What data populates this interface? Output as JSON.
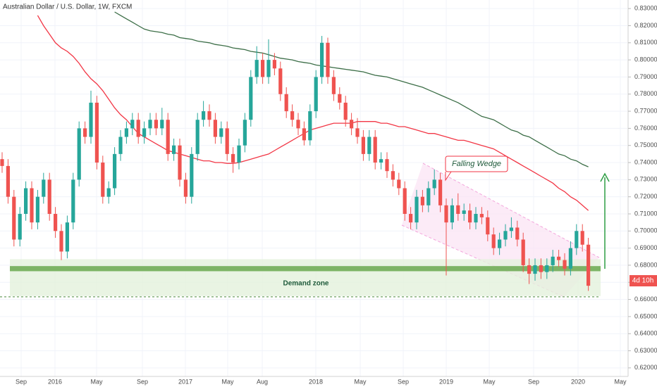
{
  "chart_data": {
    "type": "candlestick",
    "title": "Australian Dollar / U.S. Dollar, 1W, FXCM",
    "up_color": "#26a69a",
    "down_color": "#ef5350",
    "ylim": [
      0.615,
      0.835
    ],
    "yticks": [
      {
        "value": 0.83,
        "label": "0.83000"
      },
      {
        "value": 0.82,
        "label": "0.82000"
      },
      {
        "value": 0.81,
        "label": "0.81000"
      },
      {
        "value": 0.8,
        "label": "0.80000"
      },
      {
        "value": 0.79,
        "label": "0.79000"
      },
      {
        "value": 0.78,
        "label": "0.78000"
      },
      {
        "value": 0.77,
        "label": "0.77000"
      },
      {
        "value": 0.76,
        "label": "0.76000"
      },
      {
        "value": 0.75,
        "label": "0.75000"
      },
      {
        "value": 0.74,
        "label": "0.74000"
      },
      {
        "value": 0.73,
        "label": "0.73000"
      },
      {
        "value": 0.72,
        "label": "0.72000"
      },
      {
        "value": 0.71,
        "label": "0.71000"
      },
      {
        "value": 0.7,
        "label": "0.70000"
      },
      {
        "value": 0.69,
        "label": "0.69000"
      },
      {
        "value": 0.68,
        "label": "0.68000"
      },
      {
        "value": 0.67,
        "label": "0.67000"
      },
      {
        "value": 0.66,
        "label": "0.66000"
      },
      {
        "value": 0.65,
        "label": "0.65000"
      },
      {
        "value": 0.64,
        "label": "0.64000"
      },
      {
        "value": 0.63,
        "label": "0.63000"
      },
      {
        "value": 0.62,
        "label": "0.62000"
      }
    ],
    "xtick_labels": [
      "Sep",
      "2016",
      "May",
      "Sep",
      "2017",
      "May",
      "Aug",
      "2018",
      "May",
      "Sep",
      "2019",
      "May",
      "Sep",
      "2020",
      "May"
    ],
    "candles": [
      [
        0.742,
        0.746,
        0.734,
        0.738
      ],
      [
        0.738,
        0.742,
        0.716,
        0.72
      ],
      [
        0.72,
        0.724,
        0.691,
        0.695
      ],
      [
        0.695,
        0.714,
        0.691,
        0.71
      ],
      [
        0.71,
        0.729,
        0.706,
        0.725
      ],
      [
        0.725,
        0.729,
        0.701,
        0.705
      ],
      [
        0.705,
        0.724,
        0.701,
        0.72
      ],
      [
        0.72,
        0.734,
        0.716,
        0.73
      ],
      [
        0.73,
        0.734,
        0.706,
        0.71
      ],
      [
        0.71,
        0.714,
        0.696,
        0.7
      ],
      [
        0.7,
        0.704,
        0.683,
        0.688
      ],
      [
        0.688,
        0.709,
        0.684,
        0.705
      ],
      [
        0.705,
        0.734,
        0.701,
        0.73
      ],
      [
        0.73,
        0.764,
        0.726,
        0.76
      ],
      [
        0.76,
        0.764,
        0.751,
        0.755
      ],
      [
        0.755,
        0.782,
        0.751,
        0.775
      ],
      [
        0.775,
        0.779,
        0.736,
        0.74
      ],
      [
        0.74,
        0.744,
        0.716,
        0.72
      ],
      [
        0.72,
        0.729,
        0.716,
        0.725
      ],
      [
        0.725,
        0.749,
        0.721,
        0.745
      ],
      [
        0.745,
        0.759,
        0.741,
        0.755
      ],
      [
        0.755,
        0.764,
        0.751,
        0.76
      ],
      [
        0.76,
        0.769,
        0.756,
        0.765
      ],
      [
        0.765,
        0.769,
        0.751,
        0.755
      ],
      [
        0.755,
        0.764,
        0.751,
        0.76
      ],
      [
        0.76,
        0.769,
        0.756,
        0.765
      ],
      [
        0.765,
        0.769,
        0.756,
        0.76
      ],
      [
        0.76,
        0.772,
        0.756,
        0.765
      ],
      [
        0.765,
        0.769,
        0.741,
        0.745
      ],
      [
        0.745,
        0.754,
        0.741,
        0.75
      ],
      [
        0.75,
        0.754,
        0.726,
        0.73
      ],
      [
        0.73,
        0.734,
        0.716,
        0.72
      ],
      [
        0.72,
        0.749,
        0.716,
        0.745
      ],
      [
        0.745,
        0.769,
        0.741,
        0.765
      ],
      [
        0.765,
        0.776,
        0.761,
        0.77
      ],
      [
        0.77,
        0.774,
        0.761,
        0.765
      ],
      [
        0.765,
        0.769,
        0.751,
        0.755
      ],
      [
        0.755,
        0.764,
        0.751,
        0.76
      ],
      [
        0.76,
        0.764,
        0.741,
        0.745
      ],
      [
        0.745,
        0.749,
        0.734,
        0.74
      ],
      [
        0.74,
        0.754,
        0.736,
        0.75
      ],
      [
        0.75,
        0.769,
        0.746,
        0.765
      ],
      [
        0.765,
        0.794,
        0.761,
        0.79
      ],
      [
        0.79,
        0.808,
        0.786,
        0.8
      ],
      [
        0.8,
        0.804,
        0.786,
        0.79
      ],
      [
        0.79,
        0.812,
        0.786,
        0.8
      ],
      [
        0.8,
        0.804,
        0.791,
        0.795
      ],
      [
        0.795,
        0.799,
        0.776,
        0.78
      ],
      [
        0.78,
        0.784,
        0.766,
        0.77
      ],
      [
        0.77,
        0.774,
        0.761,
        0.765
      ],
      [
        0.765,
        0.769,
        0.756,
        0.76
      ],
      [
        0.76,
        0.764,
        0.75,
        0.753
      ],
      [
        0.753,
        0.774,
        0.75,
        0.77
      ],
      [
        0.77,
        0.794,
        0.766,
        0.79
      ],
      [
        0.79,
        0.814,
        0.786,
        0.81
      ],
      [
        0.81,
        0.813,
        0.786,
        0.79
      ],
      [
        0.79,
        0.794,
        0.776,
        0.78
      ],
      [
        0.78,
        0.784,
        0.771,
        0.775
      ],
      [
        0.775,
        0.779,
        0.761,
        0.765
      ],
      [
        0.765,
        0.769,
        0.756,
        0.76
      ],
      [
        0.76,
        0.766,
        0.751,
        0.755
      ],
      [
        0.755,
        0.759,
        0.741,
        0.745
      ],
      [
        0.745,
        0.759,
        0.741,
        0.755
      ],
      [
        0.755,
        0.759,
        0.736,
        0.74
      ],
      [
        0.74,
        0.746,
        0.736,
        0.742
      ],
      [
        0.742,
        0.746,
        0.731,
        0.735
      ],
      [
        0.735,
        0.739,
        0.726,
        0.73
      ],
      [
        0.73,
        0.734,
        0.721,
        0.725
      ],
      [
        0.725,
        0.729,
        0.706,
        0.71
      ],
      [
        0.71,
        0.714,
        0.701,
        0.705
      ],
      [
        0.705,
        0.724,
        0.701,
        0.72
      ],
      [
        0.72,
        0.724,
        0.711,
        0.715
      ],
      [
        0.715,
        0.729,
        0.711,
        0.725
      ],
      [
        0.725,
        0.736,
        0.721,
        0.73
      ],
      [
        0.73,
        0.734,
        0.711,
        0.715
      ],
      [
        0.715,
        0.719,
        0.674,
        0.705
      ],
      [
        0.705,
        0.719,
        0.701,
        0.715
      ],
      [
        0.715,
        0.722,
        0.706,
        0.71
      ],
      [
        0.71,
        0.716,
        0.706,
        0.712
      ],
      [
        0.712,
        0.716,
        0.701,
        0.705
      ],
      [
        0.705,
        0.714,
        0.701,
        0.71
      ],
      [
        0.71,
        0.714,
        0.704,
        0.708
      ],
      [
        0.708,
        0.712,
        0.694,
        0.698
      ],
      [
        0.698,
        0.702,
        0.686,
        0.69
      ],
      [
        0.69,
        0.699,
        0.686,
        0.695
      ],
      [
        0.695,
        0.704,
        0.691,
        0.7
      ],
      [
        0.7,
        0.708,
        0.696,
        0.702
      ],
      [
        0.702,
        0.706,
        0.691,
        0.695
      ],
      [
        0.695,
        0.699,
        0.676,
        0.68
      ],
      [
        0.68,
        0.684,
        0.669,
        0.675
      ],
      [
        0.675,
        0.684,
        0.671,
        0.68
      ],
      [
        0.68,
        0.684,
        0.672,
        0.676
      ],
      [
        0.676,
        0.684,
        0.672,
        0.68
      ],
      [
        0.68,
        0.689,
        0.676,
        0.685
      ],
      [
        0.685,
        0.689,
        0.679,
        0.683
      ],
      [
        0.683,
        0.687,
        0.674,
        0.678
      ],
      [
        0.678,
        0.694,
        0.674,
        0.69
      ],
      [
        0.69,
        0.704,
        0.686,
        0.7
      ],
      [
        0.7,
        0.704,
        0.688,
        0.692
      ],
      [
        0.692,
        0.696,
        0.665,
        0.668
      ]
    ],
    "series": [
      {
        "color": "#f23645",
        "values": [
          null,
          null,
          null,
          null,
          null,
          null,
          0.826,
          0.82,
          0.815,
          0.81,
          0.807,
          0.805,
          0.802,
          0.798,
          0.793,
          0.789,
          0.786,
          0.782,
          0.777,
          0.772,
          0.768,
          0.765,
          0.761,
          0.757,
          0.755,
          0.753,
          0.751,
          0.749,
          0.747,
          0.746,
          0.745,
          0.744,
          0.743,
          0.742,
          0.741,
          0.741,
          0.74,
          0.74,
          0.7395,
          0.7395,
          0.74,
          0.741,
          0.742,
          0.743,
          0.744,
          0.745,
          0.747,
          0.749,
          0.751,
          0.753,
          0.755,
          0.757,
          0.759,
          0.76,
          0.761,
          0.762,
          0.763,
          0.763,
          0.763,
          0.763,
          0.764,
          0.764,
          0.764,
          0.764,
          0.763,
          0.763,
          0.762,
          0.761,
          0.761,
          0.76,
          0.759,
          0.758,
          0.757,
          0.757,
          0.756,
          0.755,
          0.754,
          0.753,
          0.753,
          0.752,
          0.751,
          0.75,
          0.749,
          0.748,
          0.746,
          0.744,
          0.742,
          0.74,
          0.738,
          0.736,
          0.734,
          0.732,
          0.73,
          0.728,
          0.725,
          0.723,
          0.72,
          0.718,
          0.715,
          0.712
        ]
      },
      {
        "color": "#3c6e47",
        "values": [
          null,
          null,
          null,
          null,
          null,
          null,
          null,
          null,
          null,
          null,
          null,
          null,
          null,
          null,
          null,
          null,
          null,
          null,
          null,
          0.828,
          0.826,
          0.824,
          0.822,
          0.82,
          0.818,
          0.817,
          0.8165,
          0.816,
          0.815,
          0.8145,
          0.813,
          0.8125,
          0.812,
          0.811,
          0.8105,
          0.81,
          0.809,
          0.8085,
          0.808,
          0.807,
          0.8065,
          0.806,
          0.805,
          0.8045,
          0.804,
          0.803,
          0.802,
          0.801,
          0.8005,
          0.8,
          0.799,
          0.7985,
          0.798,
          0.797,
          0.7965,
          0.796,
          0.7955,
          0.795,
          0.7945,
          0.794,
          0.7935,
          0.793,
          0.792,
          0.791,
          0.7905,
          0.79,
          0.789,
          0.788,
          0.787,
          0.786,
          0.785,
          0.784,
          0.7825,
          0.781,
          0.7795,
          0.778,
          0.7765,
          0.775,
          0.773,
          0.771,
          0.769,
          0.767,
          0.766,
          0.765,
          0.763,
          0.761,
          0.759,
          0.758,
          0.756,
          0.755,
          0.753,
          0.751,
          0.749,
          0.747,
          0.745,
          0.744,
          0.742,
          0.741,
          0.739,
          0.7375
        ]
      }
    ],
    "demand_zone": {
      "label": "Demand zone",
      "range": [
        0.662,
        0.6835
      ],
      "band": [
        0.6765,
        0.6795
      ],
      "floor": 0.6615
    },
    "falling_wedge_label": "Falling Wedge",
    "countdown": "4d 10h"
  }
}
